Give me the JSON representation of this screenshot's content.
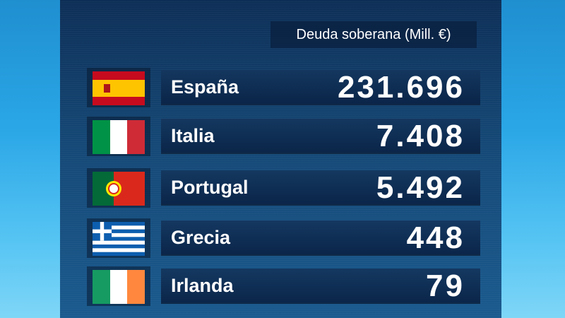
{
  "header": {
    "title": "Deuda soberana (Mill. €)"
  },
  "table": {
    "rows": [
      [
        "España",
        "231.696"
      ],
      [
        "Italia",
        "7.408"
      ],
      [
        "Portugal",
        "5.492"
      ],
      [
        "Grecia",
        "448"
      ],
      [
        "Irlanda",
        "79"
      ]
    ]
  }
}
